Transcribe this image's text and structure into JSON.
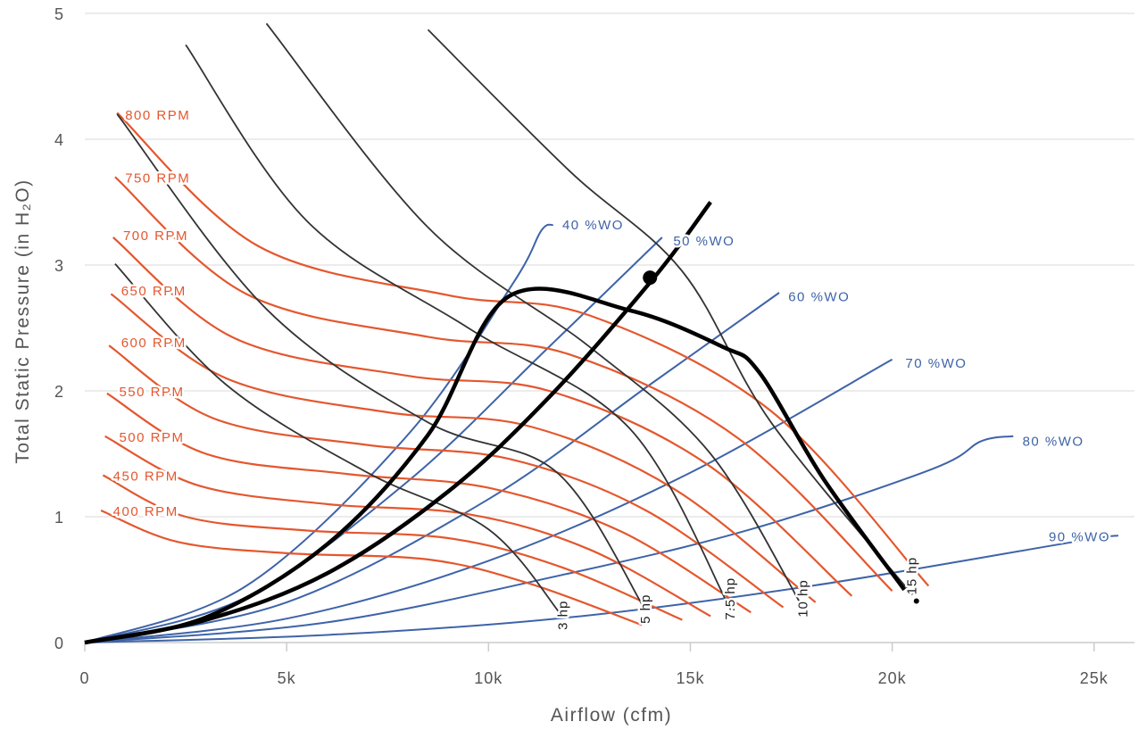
{
  "chart_data": {
    "type": "line",
    "title": "",
    "xlabel": "Airflow (cfm)",
    "ylabel": "Total Static Pressure (in H₂O)",
    "xlim": [
      0,
      26000
    ],
    "ylim": [
      0,
      5
    ],
    "x_ticks": [
      {
        "value": 0,
        "label": "0"
      },
      {
        "value": 5000,
        "label": "5k"
      },
      {
        "value": 10000,
        "label": "10k"
      },
      {
        "value": 15000,
        "label": "15k"
      },
      {
        "value": 20000,
        "label": "20k"
      },
      {
        "value": 25000,
        "label": "25k"
      }
    ],
    "y_ticks": [
      {
        "value": 0,
        "label": "0"
      },
      {
        "value": 1,
        "label": "1"
      },
      {
        "value": 2,
        "label": "2"
      },
      {
        "value": 3,
        "label": "3"
      },
      {
        "value": 4,
        "label": "4"
      },
      {
        "value": 5,
        "label": "5"
      }
    ],
    "grid": {
      "horizontal": true,
      "vertical": false
    },
    "colors": {
      "rpm": "#e4572e",
      "wo": "#3e63a8",
      "hp": "#333333",
      "envelope": "#000000",
      "grid": "#e6e6e6"
    },
    "rpm_curves": [
      {
        "name": "400 RPM",
        "points": [
          [
            400,
            1.05
          ],
          [
            2300,
            0.8
          ],
          [
            5000,
            0.71
          ],
          [
            8500,
            0.66
          ],
          [
            11000,
            0.47
          ],
          [
            13800,
            0.14
          ]
        ]
      },
      {
        "name": "450 RPM",
        "points": [
          [
            450,
            1.33
          ],
          [
            2500,
            1.0
          ],
          [
            5500,
            0.89
          ],
          [
            9000,
            0.83
          ],
          [
            11800,
            0.6
          ],
          [
            14800,
            0.18
          ]
        ]
      },
      {
        "name": "500 RPM",
        "points": [
          [
            500,
            1.64
          ],
          [
            2800,
            1.25
          ],
          [
            6000,
            1.1
          ],
          [
            9500,
            1.02
          ],
          [
            12500,
            0.74
          ],
          [
            15500,
            0.21
          ]
        ]
      },
      {
        "name": "550 RPM",
        "points": [
          [
            550,
            1.98
          ],
          [
            3000,
            1.5
          ],
          [
            6500,
            1.34
          ],
          [
            10000,
            1.23
          ],
          [
            13300,
            0.88
          ],
          [
            16500,
            0.24
          ]
        ]
      },
      {
        "name": "600 RPM",
        "points": [
          [
            600,
            2.36
          ],
          [
            3200,
            1.78
          ],
          [
            7000,
            1.57
          ],
          [
            10500,
            1.46
          ],
          [
            13900,
            1.05
          ],
          [
            17300,
            0.28
          ]
        ]
      },
      {
        "name": "650 RPM",
        "points": [
          [
            650,
            2.77
          ],
          [
            3500,
            2.1
          ],
          [
            7500,
            1.83
          ],
          [
            11000,
            1.72
          ],
          [
            14600,
            1.22
          ],
          [
            18100,
            0.32
          ]
        ]
      },
      {
        "name": "700 RPM",
        "points": [
          [
            700,
            3.22
          ],
          [
            3700,
            2.42
          ],
          [
            8000,
            2.12
          ],
          [
            11500,
            2.0
          ],
          [
            15400,
            1.42
          ],
          [
            19000,
            0.37
          ]
        ]
      },
      {
        "name": "750 RPM",
        "points": [
          [
            750,
            3.7
          ],
          [
            4000,
            2.77
          ],
          [
            8500,
            2.43
          ],
          [
            12000,
            2.29
          ],
          [
            16200,
            1.62
          ],
          [
            20000,
            0.41
          ]
        ]
      },
      {
        "name": "800 RPM",
        "points": [
          [
            800,
            4.21
          ],
          [
            4300,
            3.15
          ],
          [
            9000,
            2.76
          ],
          [
            12500,
            2.6
          ],
          [
            17000,
            1.84
          ],
          [
            20900,
            0.45
          ]
        ]
      }
    ],
    "wo_curves": [
      {
        "name": "40 %WO",
        "points": [
          [
            0,
            0
          ],
          [
            4000,
            0.45
          ],
          [
            8000,
            1.65
          ],
          [
            10600,
            2.85
          ],
          [
            11300,
            3.27
          ],
          [
            11600,
            3.32
          ]
        ]
      },
      {
        "name": "50 %WO",
        "points": [
          [
            0,
            0
          ],
          [
            4000,
            0.36
          ],
          [
            8000,
            1.28
          ],
          [
            11500,
            2.35
          ],
          [
            14300,
            3.22
          ]
        ]
      },
      {
        "name": "60 %WO",
        "points": [
          [
            0,
            0
          ],
          [
            5000,
            0.32
          ],
          [
            10000,
            1.14
          ],
          [
            14000,
            2.05
          ],
          [
            17200,
            2.78
          ]
        ]
      },
      {
        "name": "70 %WO",
        "points": [
          [
            0,
            0
          ],
          [
            5000,
            0.19
          ],
          [
            10000,
            0.65
          ],
          [
            15000,
            1.35
          ],
          [
            20000,
            2.25
          ]
        ]
      },
      {
        "name": "80 %WO",
        "points": [
          [
            0,
            0
          ],
          [
            6000,
            0.16
          ],
          [
            12000,
            0.55
          ],
          [
            16500,
            0.9
          ],
          [
            21000,
            1.38
          ],
          [
            22200,
            1.6
          ],
          [
            23000,
            1.64
          ]
        ]
      },
      {
        "name": "90 %WO",
        "points": [
          [
            0,
            0
          ],
          [
            6000,
            0.06
          ],
          [
            12000,
            0.2
          ],
          [
            18000,
            0.45
          ],
          [
            24500,
            0.8
          ],
          [
            25600,
            0.85
          ]
        ]
      }
    ],
    "hp_curves": [
      {
        "name": "3 hp",
        "points": [
          [
            750,
            3.01
          ],
          [
            3500,
            2.05
          ],
          [
            7000,
            1.35
          ],
          [
            10000,
            0.9
          ],
          [
            11800,
            0.22
          ]
        ]
      },
      {
        "name": "5 hp",
        "points": [
          [
            800,
            4.2
          ],
          [
            4500,
            2.65
          ],
          [
            8500,
            1.75
          ],
          [
            11700,
            1.35
          ],
          [
            13900,
            0.25
          ]
        ]
      },
      {
        "name": "7.5 hp",
        "points": [
          [
            2500,
            4.75
          ],
          [
            5500,
            3.35
          ],
          [
            9500,
            2.5
          ],
          [
            13500,
            1.7
          ],
          [
            16000,
            0.26
          ]
        ]
      },
      {
        "name": "10 hp",
        "points": [
          [
            4500,
            4.92
          ],
          [
            8500,
            3.3
          ],
          [
            12500,
            2.35
          ],
          [
            15500,
            1.5
          ],
          [
            17800,
            0.27
          ]
        ]
      },
      {
        "name": "15 hp",
        "points": [
          [
            8500,
            4.87
          ],
          [
            12000,
            3.75
          ],
          [
            14800,
            2.95
          ],
          [
            17000,
            1.75
          ],
          [
            20500,
            0.38
          ]
        ]
      }
    ],
    "envelope_curves": [
      {
        "name": "outer",
        "points": [
          [
            0,
            0
          ],
          [
            3000,
            0.2
          ],
          [
            6000,
            0.78
          ],
          [
            8500,
            1.65
          ],
          [
            10500,
            2.75
          ],
          [
            13500,
            2.64
          ],
          [
            15800,
            2.35
          ],
          [
            16700,
            2.15
          ],
          [
            18300,
            1.3
          ],
          [
            20300,
            0.42
          ]
        ]
      },
      {
        "name": "system",
        "points": [
          [
            0,
            0
          ],
          [
            3000,
            0.18
          ],
          [
            6000,
            0.55
          ],
          [
            9000,
            1.2
          ],
          [
            11500,
            1.95
          ],
          [
            14100,
            2.9
          ],
          [
            15500,
            3.5
          ]
        ]
      }
    ],
    "operating_point": {
      "x": 14000,
      "y": 2.9
    },
    "hp_endpoint": {
      "x": 20600,
      "y": 0.33
    },
    "labels": {
      "rpm": [
        {
          "text": "800 RPM",
          "x": 1000,
          "y": 4.2
        },
        {
          "text": "750 RPM",
          "x": 1000,
          "y": 3.7
        },
        {
          "text": "700 RPM",
          "x": 950,
          "y": 3.24
        },
        {
          "text": "650 RPM",
          "x": 900,
          "y": 2.8
        },
        {
          "text": "600 RPM",
          "x": 900,
          "y": 2.39
        },
        {
          "text": "550 RPM",
          "x": 850,
          "y": 2.0
        },
        {
          "text": "500 RPM",
          "x": 850,
          "y": 1.64
        },
        {
          "text": "450 RPM",
          "x": 700,
          "y": 1.33
        },
        {
          "text": "400 RPM",
          "x": 700,
          "y": 1.05
        }
      ],
      "wo": [
        {
          "text": "40 %WO",
          "x": 11650,
          "y": 3.32
        },
        {
          "text": "50 %WO",
          "x": 14400,
          "y": 3.19
        },
        {
          "text": "60 %WO",
          "x": 17250,
          "y": 2.75
        },
        {
          "text": "70 %WO",
          "x": 20150,
          "y": 2.22
        },
        {
          "text": "80 %WO",
          "x": 23050,
          "y": 1.6
        },
        {
          "text": "90 %WO",
          "x": 23700,
          "y": 0.84
        }
      ],
      "hp": [
        {
          "text": "3 hp",
          "x": 11950,
          "y": 0.1
        },
        {
          "text": "5 hp",
          "x": 14000,
          "y": 0.15
        },
        {
          "text": "7.5 hp",
          "x": 16100,
          "y": 0.18
        },
        {
          "text": "10 hp",
          "x": 17900,
          "y": 0.2
        },
        {
          "text": "15 hp",
          "x": 20600,
          "y": 0.38
        }
      ]
    }
  }
}
